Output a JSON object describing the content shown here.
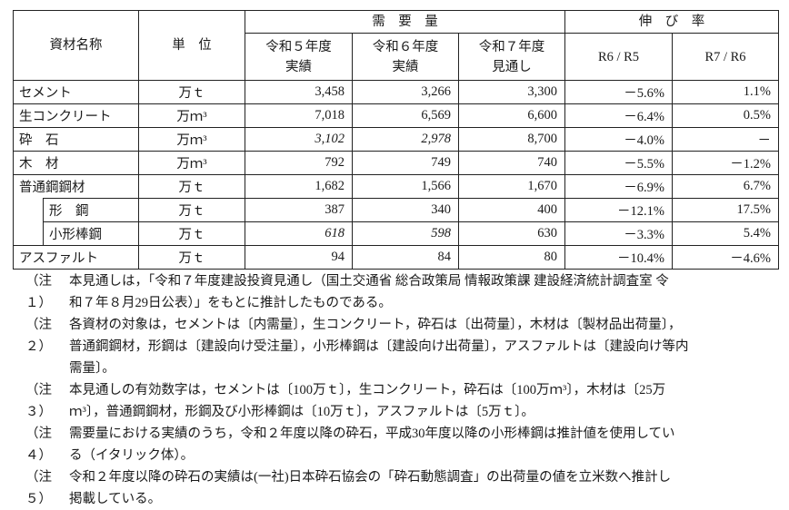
{
  "header": {
    "material_name": "資材名称",
    "unit": "単　位",
    "demand_group": "需　要　量",
    "growth_group": "伸　び　率",
    "col_r5": [
      "令和５年度",
      "実績"
    ],
    "col_r6": [
      "令和６年度",
      "実績"
    ],
    "col_r7": [
      "令和７年度",
      "見通し"
    ],
    "ratio1": "R6 / R5",
    "ratio2": "R7 / R6"
  },
  "rows": [
    {
      "name": "セメント",
      "unit": "万ｔ",
      "r5": "3,458",
      "r6": "3,266",
      "r7": "3,300",
      "g1": "－5.6%",
      "g2": "1.1%"
    },
    {
      "name": "生コンクリート",
      "unit": "万ｍ³",
      "r5": "7,018",
      "r6": "6,569",
      "r7": "6,600",
      "g1": "－6.4%",
      "g2": "0.5%"
    },
    {
      "name": "砕　石",
      "unit": "万ｍ³",
      "r5": "3,102",
      "r6": "2,978",
      "r7": "8,700",
      "g1": "－4.0%",
      "g2": "－"
    },
    {
      "name": "木　材",
      "unit": "万ｍ³",
      "r5": "792",
      "r6": "749",
      "r7": "740",
      "g1": "－5.5%",
      "g2": "－1.2%"
    },
    {
      "name": "普通鋼鋼材",
      "unit": "万ｔ",
      "r5": "1,682",
      "r6": "1,566",
      "r7": "1,670",
      "g1": "－6.9%",
      "g2": "6.7%"
    },
    {
      "name": "形　鋼",
      "unit": "万ｔ",
      "r5": "387",
      "r6": "340",
      "r7": "400",
      "g1": "－12.1%",
      "g2": "17.5%"
    },
    {
      "name": "小形棒鋼",
      "unit": "万ｔ",
      "r5": "618",
      "r6": "598",
      "r7": "630",
      "g1": "－3.3%",
      "g2": "5.4%"
    },
    {
      "name": "アスファルト",
      "unit": "万ｔ",
      "r5": "94",
      "r6": "84",
      "r7": "80",
      "g1": "－10.4%",
      "g2": "－4.6%"
    }
  ],
  "notes": [
    {
      "label": "（注１）",
      "lines": [
        "本見通しは，「令和７年度建設投資見通し（国土交通省 総合政策局 情報政策課 建設経済統計調査室 令",
        "和７年８月29日公表）」をもとに推計したものである。"
      ]
    },
    {
      "label": "（注２）",
      "lines": [
        "各資材の対象は，セメントは〔内需量〕，生コンクリート，砕石は〔出荷量〕，木材は〔製材品出荷量〕，",
        "普通鋼鋼材，形鋼は〔建設向け受注量〕，小形棒鋼は〔建設向け出荷量〕，アスファルトは〔建設向け等内",
        "需量〕。"
      ]
    },
    {
      "label": "（注３）",
      "lines": [
        "本見通しの有効数字は，セメントは〔100万ｔ〕，生コンクリート，砕石は〔100万ｍ³〕，木材は〔25万",
        "ｍ³〕，普通鋼鋼材，形鋼及び小形棒鋼は〔10万ｔ〕，アスファルトは〔5万ｔ〕。"
      ]
    },
    {
      "label": "（注４）",
      "lines": [
        "需要量における実績のうち，令和２年度以降の砕石，平成30年度以降の小形棒鋼は推計値を使用してい",
        "る（イタリック体）。"
      ]
    },
    {
      "label": "（注５）",
      "lines": [
        "令和２年度以降の砕石の実績は(一社)日本砕石協会の「砕石動態調査」の出荷量の値を立米数へ推計し",
        "掲載している。"
      ]
    }
  ]
}
